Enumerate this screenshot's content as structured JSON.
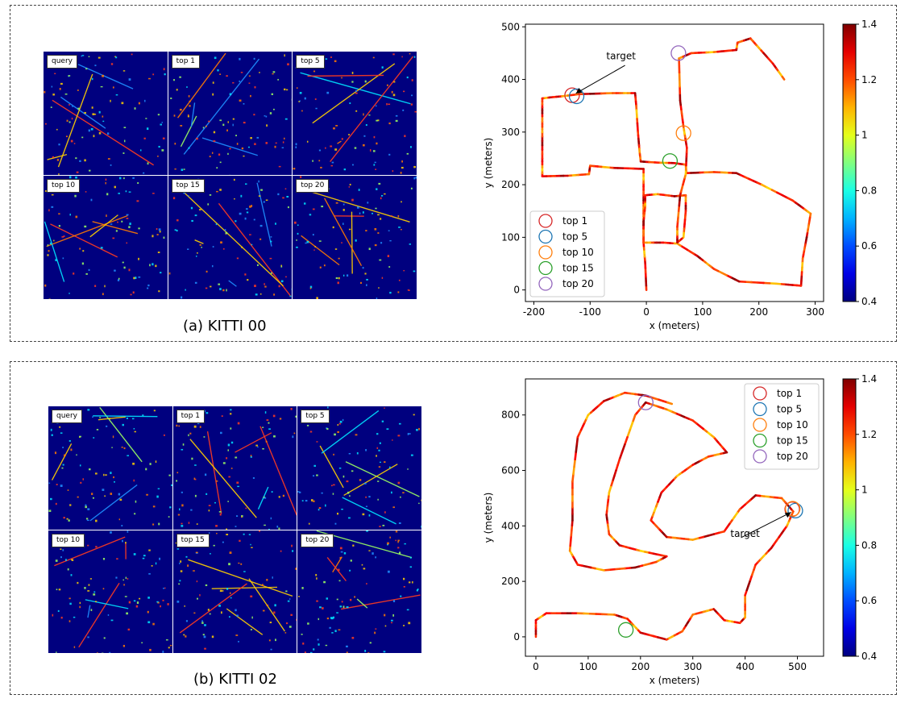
{
  "figure": {
    "panel_a": {
      "caption": "(a) KITTI 00",
      "tile_labels": [
        "query",
        "top 1",
        "top 5",
        "top 10",
        "top 15",
        "top 20"
      ]
    },
    "panel_b": {
      "caption": "(b) KITTI 02",
      "tile_labels": [
        "query",
        "top 1",
        "top 5",
        "top 10",
        "top 15",
        "top 20"
      ]
    }
  },
  "chart_data": [
    {
      "type": "line",
      "xlabel": "x (meters)",
      "ylabel": "y (meters)",
      "xlim": [
        -215,
        315
      ],
      "ylim": [
        -22,
        505
      ],
      "xticks": [
        -200,
        -100,
        0,
        100,
        200,
        300
      ],
      "yticks": [
        0,
        100,
        200,
        300,
        400,
        500
      ],
      "colorbar": {
        "min": 0.4,
        "max": 1.4,
        "ticks": [
          0.4,
          0.6,
          0.8,
          1.0,
          1.2,
          1.4
        ],
        "colormap": "jet"
      },
      "legend_position": "bottom-left",
      "trajectory": [
        [
          0,
          0
        ],
        [
          -2,
          50
        ],
        [
          -5,
          90
        ],
        [
          -5,
          130
        ],
        [
          -5,
          160
        ],
        [
          -5,
          190
        ],
        [
          -5,
          230
        ],
        [
          -60,
          232
        ],
        [
          -100,
          236
        ],
        [
          -102,
          220
        ],
        [
          -140,
          217
        ],
        [
          -185,
          216
        ],
        [
          -185,
          250
        ],
        [
          -185,
          300
        ],
        [
          -185,
          330
        ],
        [
          -185,
          364
        ],
        [
          -170,
          366
        ],
        [
          -150,
          368
        ],
        [
          -120,
          372
        ],
        [
          -60,
          374
        ],
        [
          -20,
          374
        ],
        [
          -18,
          350
        ],
        [
          -15,
          300
        ],
        [
          -12,
          262
        ],
        [
          -10,
          244
        ],
        [
          20,
          242
        ],
        [
          50,
          241
        ],
        [
          70,
          238
        ],
        [
          71,
          222
        ],
        [
          120,
          224
        ],
        [
          160,
          222
        ],
        [
          205,
          200
        ],
        [
          260,
          170
        ],
        [
          292,
          145
        ],
        [
          285,
          100
        ],
        [
          278,
          60
        ],
        [
          275,
          8
        ],
        [
          230,
          12
        ],
        [
          165,
          16
        ],
        [
          120,
          40
        ],
        [
          90,
          65
        ],
        [
          55,
          88
        ],
        [
          30,
          90
        ],
        [
          -5,
          90
        ],
        [
          -5,
          130
        ],
        [
          -2,
          160
        ],
        [
          -2,
          180
        ],
        [
          20,
          182
        ],
        [
          50,
          178
        ],
        [
          70,
          180
        ],
        [
          70,
          150
        ],
        [
          66,
          100
        ],
        [
          55,
          90
        ],
        [
          55,
          120
        ],
        [
          60,
          180
        ],
        [
          70,
          220
        ],
        [
          72,
          270
        ],
        [
          66,
          310
        ],
        [
          60,
          360
        ],
        [
          58,
          440
        ],
        [
          80,
          450
        ],
        [
          120,
          452
        ],
        [
          160,
          456
        ],
        [
          162,
          470
        ],
        [
          185,
          478
        ],
        [
          200,
          460
        ],
        [
          225,
          430
        ],
        [
          245,
          400
        ]
      ],
      "annotation": {
        "text": "target",
        "point": [
          -130,
          370
        ],
        "text_pos": [
          -45,
          438
        ]
      },
      "markers": [
        {
          "name": "top 1",
          "x": -132,
          "y": 370,
          "color": "#d62728"
        },
        {
          "name": "top 5",
          "x": -124,
          "y": 368,
          "color": "#1f77b4"
        },
        {
          "name": "top 10",
          "x": 66,
          "y": 298,
          "color": "#ff7f0e"
        },
        {
          "name": "top 15",
          "x": 42,
          "y": 245,
          "color": "#2ca02c"
        },
        {
          "name": "top 20",
          "x": 57,
          "y": 450,
          "color": "#9467bd"
        }
      ]
    },
    {
      "type": "line",
      "xlabel": "x (meters)",
      "ylabel": "y (meters)",
      "xlim": [
        -20,
        550
      ],
      "ylim": [
        -70,
        930
      ],
      "xticks": [
        0,
        100,
        200,
        300,
        400,
        500
      ],
      "yticks": [
        0,
        200,
        400,
        600,
        800
      ],
      "colorbar": {
        "min": 0.4,
        "max": 1.4,
        "ticks": [
          0.4,
          0.6,
          0.8,
          1.0,
          1.2,
          1.4
        ],
        "colormap": "jet"
      },
      "legend_position": "top-right",
      "trajectory": [
        [
          0,
          0
        ],
        [
          0,
          60
        ],
        [
          20,
          85
        ],
        [
          80,
          85
        ],
        [
          150,
          80
        ],
        [
          175,
          65
        ],
        [
          200,
          15
        ],
        [
          250,
          -10
        ],
        [
          280,
          20
        ],
        [
          300,
          80
        ],
        [
          340,
          100
        ],
        [
          360,
          60
        ],
        [
          390,
          50
        ],
        [
          400,
          70
        ],
        [
          400,
          150
        ],
        [
          420,
          260
        ],
        [
          450,
          320
        ],
        [
          480,
          400
        ],
        [
          492,
          452
        ],
        [
          470,
          500
        ],
        [
          420,
          510
        ],
        [
          390,
          460
        ],
        [
          360,
          380
        ],
        [
          300,
          350
        ],
        [
          250,
          360
        ],
        [
          220,
          420
        ],
        [
          240,
          520
        ],
        [
          270,
          580
        ],
        [
          300,
          620
        ],
        [
          330,
          650
        ],
        [
          365,
          665
        ],
        [
          340,
          720
        ],
        [
          300,
          780
        ],
        [
          250,
          820
        ],
        [
          210,
          845
        ],
        [
          190,
          800
        ],
        [
          160,
          640
        ],
        [
          140,
          520
        ],
        [
          135,
          440
        ],
        [
          140,
          370
        ],
        [
          160,
          330
        ],
        [
          200,
          310
        ],
        [
          250,
          290
        ],
        [
          230,
          270
        ],
        [
          190,
          250
        ],
        [
          130,
          240
        ],
        [
          80,
          260
        ],
        [
          65,
          310
        ],
        [
          70,
          420
        ],
        [
          70,
          560
        ],
        [
          80,
          720
        ],
        [
          100,
          800
        ],
        [
          130,
          850
        ],
        [
          170,
          880
        ],
        [
          210,
          870
        ],
        [
          260,
          840
        ]
      ],
      "annotation": {
        "text": "target",
        "point": [
          493,
          455
        ],
        "text_pos": [
          400,
          360
        ]
      },
      "markers": [
        {
          "name": "top 1",
          "x": 490,
          "y": 460,
          "color": "#d62728"
        },
        {
          "name": "top 5",
          "x": 496,
          "y": 455,
          "color": "#1f77b4"
        },
        {
          "name": "top 10",
          "x": 491,
          "y": 462,
          "color": "#ff7f0e"
        },
        {
          "name": "top 15",
          "x": 172,
          "y": 25,
          "color": "#2ca02c"
        },
        {
          "name": "top 20",
          "x": 210,
          "y": 845,
          "color": "#9467bd"
        }
      ]
    }
  ]
}
